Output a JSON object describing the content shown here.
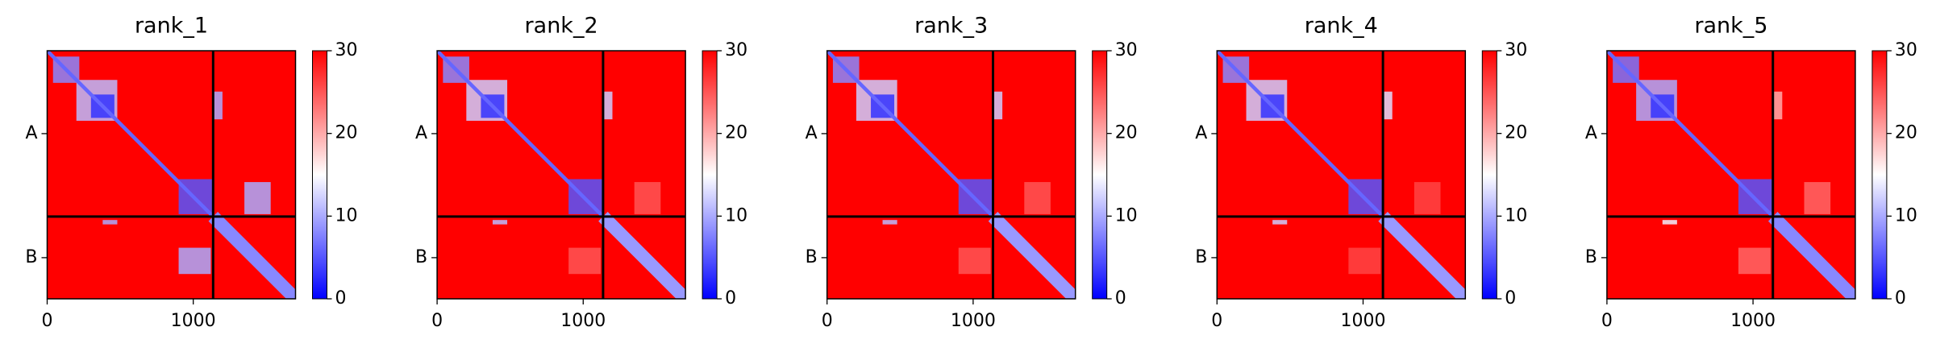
{
  "chart_data": [
    {
      "type": "heatmap",
      "title": "rank_1",
      "xlim": [
        0,
        1700
      ],
      "xticks": [
        0,
        1000
      ],
      "ylim": [
        1700,
        0
      ],
      "yticks": [
        {
          "value": 568,
          "label": "A"
        },
        {
          "value": 1418,
          "label": "B"
        }
      ],
      "chain_breaks": [
        1136
      ],
      "clim": [
        0,
        30
      ],
      "cticks": [
        0,
        10,
        20,
        30
      ],
      "colormap": [
        "#0000ff",
        "#ffffff",
        "#ff0000"
      ],
      "background": 30,
      "regions": [
        {
          "x": [
            40,
            220
          ],
          "y": [
            40,
            220
          ],
          "value": 8
        },
        {
          "x": [
            200,
            480
          ],
          "y": [
            200,
            480
          ],
          "value": 11
        },
        {
          "x": [
            300,
            460
          ],
          "y": [
            300,
            460
          ],
          "value": 3
        },
        {
          "x": [
            900,
            1130
          ],
          "y": [
            880,
            1120
          ],
          "value": 5
        },
        {
          "x": [
            1140,
            1200
          ],
          "y": [
            280,
            470
          ],
          "value": 10
        },
        {
          "x": [
            1350,
            1530
          ],
          "y": [
            900,
            1120
          ],
          "value": 10
        },
        {
          "x": [
            900,
            1120
          ],
          "y": [
            1350,
            1530
          ],
          "value": 10
        },
        {
          "x": [
            380,
            480
          ],
          "y": [
            1160,
            1190
          ],
          "value": 10
        }
      ],
      "diagonals": [
        {
          "from": 0,
          "to": 1136,
          "width": 25,
          "value": 6
        },
        {
          "from": 1136,
          "to": 1700,
          "width": 90,
          "value": 8
        }
      ]
    },
    {
      "type": "heatmap",
      "title": "rank_2",
      "xlim": [
        0,
        1700
      ],
      "xticks": [
        0,
        1000
      ],
      "ylim": [
        1700,
        0
      ],
      "yticks": [
        {
          "value": 568,
          "label": "A"
        },
        {
          "value": 1418,
          "label": "B"
        }
      ],
      "chain_breaks": [
        1136
      ],
      "clim": [
        0,
        30
      ],
      "cticks": [
        0,
        10,
        20,
        30
      ],
      "colormap": [
        "#0000ff",
        "#ffffff",
        "#ff0000"
      ],
      "background": 30,
      "regions": [
        {
          "x": [
            40,
            220
          ],
          "y": [
            40,
            220
          ],
          "value": 8
        },
        {
          "x": [
            200,
            480
          ],
          "y": [
            200,
            480
          ],
          "value": 12
        },
        {
          "x": [
            300,
            460
          ],
          "y": [
            300,
            460
          ],
          "value": 3
        },
        {
          "x": [
            900,
            1130
          ],
          "y": [
            880,
            1120
          ],
          "value": 5
        },
        {
          "x": [
            1140,
            1200
          ],
          "y": [
            280,
            470
          ],
          "value": 12
        },
        {
          "x": [
            1350,
            1530
          ],
          "y": [
            900,
            1120
          ],
          "value": 25
        },
        {
          "x": [
            900,
            1120
          ],
          "y": [
            1350,
            1530
          ],
          "value": 25
        },
        {
          "x": [
            380,
            480
          ],
          "y": [
            1160,
            1190
          ],
          "value": 11
        }
      ],
      "diagonals": [
        {
          "from": 0,
          "to": 1136,
          "width": 25,
          "value": 6
        },
        {
          "from": 1136,
          "to": 1700,
          "width": 90,
          "value": 9
        }
      ]
    },
    {
      "type": "heatmap",
      "title": "rank_3",
      "xlim": [
        0,
        1700
      ],
      "xticks": [
        0,
        1000
      ],
      "ylim": [
        1700,
        0
      ],
      "yticks": [
        {
          "value": 568,
          "label": "A"
        },
        {
          "value": 1418,
          "label": "B"
        }
      ],
      "chain_breaks": [
        1136
      ],
      "clim": [
        0,
        30
      ],
      "cticks": [
        0,
        10,
        20,
        30
      ],
      "colormap": [
        "#0000ff",
        "#ffffff",
        "#ff0000"
      ],
      "background": 30,
      "regions": [
        {
          "x": [
            40,
            220
          ],
          "y": [
            40,
            220
          ],
          "value": 8
        },
        {
          "x": [
            200,
            480
          ],
          "y": [
            200,
            480
          ],
          "value": 12
        },
        {
          "x": [
            300,
            460
          ],
          "y": [
            300,
            460
          ],
          "value": 3
        },
        {
          "x": [
            900,
            1130
          ],
          "y": [
            880,
            1120
          ],
          "value": 5
        },
        {
          "x": [
            1140,
            1200
          ],
          "y": [
            280,
            470
          ],
          "value": 12
        },
        {
          "x": [
            1350,
            1530
          ],
          "y": [
            900,
            1120
          ],
          "value": 25
        },
        {
          "x": [
            900,
            1120
          ],
          "y": [
            1350,
            1530
          ],
          "value": 25
        },
        {
          "x": [
            380,
            480
          ],
          "y": [
            1160,
            1190
          ],
          "value": 11
        }
      ],
      "diagonals": [
        {
          "from": 0,
          "to": 1136,
          "width": 25,
          "value": 6
        },
        {
          "from": 1136,
          "to": 1700,
          "width": 90,
          "value": 9
        }
      ]
    },
    {
      "type": "heatmap",
      "title": "rank_4",
      "xlim": [
        0,
        1700
      ],
      "xticks": [
        0,
        1000
      ],
      "ylim": [
        1700,
        0
      ],
      "yticks": [
        {
          "value": 568,
          "label": "A"
        },
        {
          "value": 1418,
          "label": "B"
        }
      ],
      "chain_breaks": [
        1136
      ],
      "clim": [
        0,
        30
      ],
      "cticks": [
        0,
        10,
        20,
        30
      ],
      "colormap": [
        "#0000ff",
        "#ffffff",
        "#ff0000"
      ],
      "background": 30,
      "regions": [
        {
          "x": [
            40,
            220
          ],
          "y": [
            40,
            220
          ],
          "value": 8
        },
        {
          "x": [
            200,
            480
          ],
          "y": [
            200,
            480
          ],
          "value": 12
        },
        {
          "x": [
            300,
            460
          ],
          "y": [
            300,
            460
          ],
          "value": 3
        },
        {
          "x": [
            900,
            1130
          ],
          "y": [
            880,
            1120
          ],
          "value": 5
        },
        {
          "x": [
            1140,
            1200
          ],
          "y": [
            280,
            470
          ],
          "value": 13
        },
        {
          "x": [
            1350,
            1530
          ],
          "y": [
            900,
            1120
          ],
          "value": 26
        },
        {
          "x": [
            900,
            1120
          ],
          "y": [
            1350,
            1530
          ],
          "value": 26
        },
        {
          "x": [
            380,
            480
          ],
          "y": [
            1160,
            1190
          ],
          "value": 12
        }
      ],
      "diagonals": [
        {
          "from": 0,
          "to": 1136,
          "width": 25,
          "value": 6
        },
        {
          "from": 1136,
          "to": 1700,
          "width": 90,
          "value": 9
        }
      ]
    },
    {
      "type": "heatmap",
      "title": "rank_5",
      "xlim": [
        0,
        1700
      ],
      "xticks": [
        0,
        1000
      ],
      "ylim": [
        1700,
        0
      ],
      "yticks": [
        {
          "value": 568,
          "label": "A"
        },
        {
          "value": 1418,
          "label": "B"
        }
      ],
      "chain_breaks": [
        1136
      ],
      "clim": [
        0,
        30
      ],
      "cticks": [
        0,
        10,
        20,
        30
      ],
      "colormap": [
        "#0000ff",
        "#ffffff",
        "#ff0000"
      ],
      "background": 30,
      "regions": [
        {
          "x": [
            40,
            220
          ],
          "y": [
            40,
            220
          ],
          "value": 7
        },
        {
          "x": [
            200,
            480
          ],
          "y": [
            200,
            480
          ],
          "value": 10
        },
        {
          "x": [
            300,
            460
          ],
          "y": [
            300,
            460
          ],
          "value": 3
        },
        {
          "x": [
            900,
            1130
          ],
          "y": [
            880,
            1120
          ],
          "value": 5
        },
        {
          "x": [
            1140,
            1200
          ],
          "y": [
            280,
            470
          ],
          "value": 20
        },
        {
          "x": [
            1350,
            1530
          ],
          "y": [
            900,
            1120
          ],
          "value": 24
        },
        {
          "x": [
            900,
            1120
          ],
          "y": [
            1350,
            1530
          ],
          "value": 24
        },
        {
          "x": [
            380,
            480
          ],
          "y": [
            1160,
            1190
          ],
          "value": 14
        }
      ],
      "diagonals": [
        {
          "from": 0,
          "to": 1136,
          "width": 25,
          "value": 6
        },
        {
          "from": 1136,
          "to": 1700,
          "width": 90,
          "value": 8
        }
      ]
    }
  ]
}
